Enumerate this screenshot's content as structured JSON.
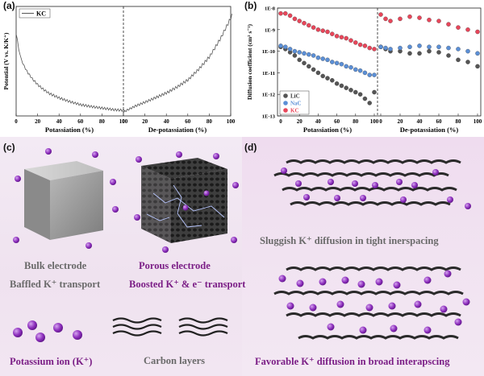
{
  "panels": {
    "a": "(a)",
    "b": "(b)",
    "c": "(c)",
    "d": "(d)"
  },
  "chart_data": [
    {
      "type": "line",
      "panel": "a",
      "ylabel": "Potential (V vs. K/K⁺)",
      "xlabel_left": "Potassiation (%)",
      "xlabel_right": "De-potassiation (%)",
      "left_ticks": [
        "0",
        "20",
        "40",
        "60",
        "80",
        "100"
      ],
      "right_ticks": [
        "0",
        "20",
        "40",
        "60",
        "80",
        "100"
      ],
      "legend": [
        "KC"
      ],
      "series": [
        {
          "name": "KC",
          "potassiation": {
            "x": [
              0,
              3,
              6,
              10,
              15,
              20,
              25,
              30,
              40,
              50,
              60,
              70,
              80,
              90,
              100
            ],
            "y": [
              2.1,
              1.6,
              1.35,
              1.15,
              0.95,
              0.8,
              0.68,
              0.58,
              0.45,
              0.35,
              0.27,
              0.22,
              0.18,
              0.14,
              0.12
            ]
          },
          "depotassiation": {
            "x": [
              0,
              10,
              20,
              30,
              40,
              50,
              60,
              70,
              80,
              90,
              100
            ],
            "y": [
              0.15,
              0.3,
              0.42,
              0.55,
              0.68,
              0.85,
              1.05,
              1.35,
              1.7,
              2.2,
              2.8
            ]
          }
        }
      ]
    },
    {
      "type": "scatter",
      "panel": "b",
      "ylabel": "Diffusion coefficient (cm² s⁻¹)",
      "xlabel_left": "Potassiation (%)",
      "xlabel_right": "De-potassiation (%)",
      "y_ticks": [
        "1E-8",
        "1E-9",
        "1E-10",
        "1E-11",
        "1E-12",
        "1E-13"
      ],
      "left_ticks": [
        "0",
        "20",
        "40",
        "60",
        "80",
        "100"
      ],
      "right_ticks": [
        "0",
        "20",
        "40",
        "60",
        "80",
        "100"
      ],
      "log_scale": true,
      "ylim_exp": [
        -13,
        -8
      ],
      "legend": [
        "LiC",
        "NaC",
        "KC"
      ],
      "series": [
        {
          "name": "LiC",
          "color": "#555555",
          "potassiation": {
            "x": [
              0,
              5,
              10,
              15,
              20,
              25,
              30,
              35,
              40,
              45,
              50,
              55,
              60,
              65,
              70,
              75,
              80,
              85,
              90,
              95,
              100
            ],
            "y": [
              -9.8,
              -9.9,
              -10.05,
              -10.2,
              -10.4,
              -10.55,
              -10.7,
              -10.85,
              -11.0,
              -11.15,
              -11.25,
              -11.35,
              -11.5,
              -11.6,
              -11.7,
              -11.8,
              -11.9,
              -12.0,
              -12.2,
              -12.4,
              -11.9
            ]
          },
          "depotassiation": {
            "x": [
              0,
              5,
              10,
              20,
              30,
              40,
              50,
              60,
              70,
              80,
              90,
              100
            ],
            "y": [
              -9.8,
              -9.9,
              -10.0,
              -10.0,
              -10.1,
              -10.1,
              -10.0,
              -10.05,
              -10.2,
              -10.4,
              -10.5,
              -10.7
            ]
          }
        },
        {
          "name": "NaC",
          "color": "#5b8fd6",
          "potassiation": {
            "x": [
              0,
              5,
              10,
              15,
              20,
              25,
              30,
              35,
              40,
              45,
              50,
              55,
              60,
              65,
              70,
              75,
              80,
              85,
              90,
              95,
              100
            ],
            "y": [
              -9.75,
              -9.8,
              -9.9,
              -10.0,
              -10.05,
              -10.1,
              -10.15,
              -10.2,
              -10.3,
              -10.35,
              -10.4,
              -10.5,
              -10.55,
              -10.6,
              -10.7,
              -10.75,
              -10.85,
              -10.9,
              -11.0,
              -11.1,
              -11.1
            ]
          },
          "depotassiation": {
            "x": [
              0,
              5,
              10,
              20,
              30,
              40,
              50,
              60,
              70,
              80,
              90,
              100
            ],
            "y": [
              -9.8,
              -9.85,
              -9.9,
              -9.85,
              -9.8,
              -9.75,
              -9.8,
              -9.8,
              -9.85,
              -9.9,
              -10.0,
              -10.1
            ]
          }
        },
        {
          "name": "KC",
          "color": "#e8465a",
          "potassiation": {
            "x": [
              0,
              5,
              10,
              15,
              20,
              25,
              30,
              35,
              40,
              45,
              50,
              55,
              60,
              65,
              70,
              75,
              80,
              85,
              90,
              95,
              100
            ],
            "y": [
              -8.25,
              -8.25,
              -8.35,
              -8.5,
              -8.6,
              -8.7,
              -8.8,
              -8.9,
              -9.0,
              -9.05,
              -9.1,
              -9.2,
              -9.3,
              -9.35,
              -9.4,
              -9.5,
              -9.6,
              -9.7,
              -9.75,
              -9.85,
              -9.9
            ]
          },
          "depotassiation": {
            "x": [
              0,
              5,
              10,
              20,
              30,
              40,
              50,
              60,
              70,
              80,
              90,
              100
            ],
            "y": [
              -8.3,
              -8.5,
              -8.6,
              -8.5,
              -8.4,
              -8.45,
              -8.55,
              -8.6,
              -8.75,
              -8.9,
              -9.0,
              -9.1
            ]
          }
        }
      ]
    }
  ],
  "panel_c": {
    "bulk_electrode": "Bulk electrode",
    "baffled_transport": "Baffled K⁺ transport",
    "porous_electrode": "Porous electrode",
    "boosted_transport": "Boosted K⁺ & e⁻ transport",
    "potassium_ion": "Potassium ion (K⁺)",
    "carbon_layers": "Carbon layers"
  },
  "panel_d": {
    "sluggish": "Sluggish K⁺ diffusion in tight inerspacing",
    "favorable": "Favorable K⁺ diffusion in broad interapscing"
  },
  "colors": {
    "purple": "#8a2aa0",
    "ion": "#9b3fc4",
    "gray_text": "#6a6a6a",
    "purple_text": "#7b1e86"
  }
}
